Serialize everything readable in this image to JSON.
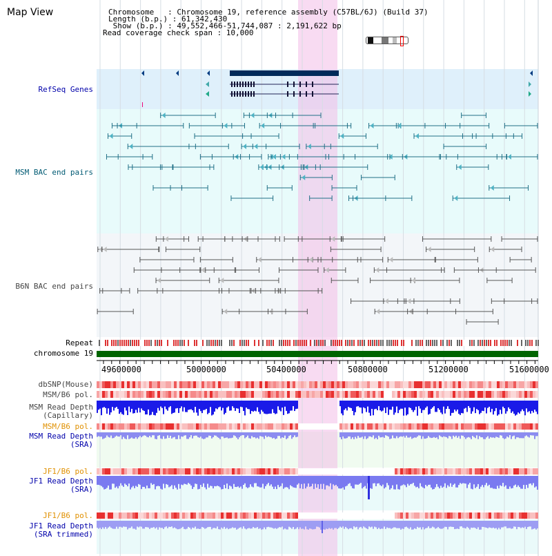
{
  "header": {
    "title": "Map View",
    "chromosome_line": "Chromosome   : Chromosome 19, reference assembly (C57BL/6J) (Build 37)",
    "length_line": "Length (b.p.) : 61,342,430",
    "show_line": " Show (b.p.) : 49,552,466-51,744,087 : 2,191,622 bp",
    "coverage_line": "Read coverage check span : 10,000"
  },
  "tracks": {
    "refseq": "RefSeq Genes",
    "msm_bac": "MSM BAC end pairs",
    "b6n_bac": "B6N BAC end pairs",
    "repeat": "Repeat",
    "chromosome": "chromosome 19",
    "dbsnp": "dbSNP(Mouse)",
    "msm_b6_pol_1": "MSM/B6 pol.",
    "msm_read_depth_cap": "MSM Read Depth\n(Capillary)",
    "msm_b6_pol_2": "MSM/B6 pol.",
    "msm_read_depth_sra": "MSM Read Depth\n(SRA)",
    "jf1_b6_pol_1": "JF1/B6 pol.",
    "jf1_read_depth_sra": "JF1 Read Depth\n(SRA)",
    "jf1_b6_pol_2": "JF1/B6 pol.",
    "jf1_read_depth_trim": "JF1 Read Depth\n(SRA trimmed)"
  },
  "axis": {
    "ticks": [
      "49600000",
      "50000000",
      "50400000",
      "50800000",
      "51200000",
      "51600000"
    ]
  },
  "colors": {
    "refseq_bg": "#dff0fb",
    "bac_bg": "#e8fbfb",
    "b6n_bg": "#f3f6f9",
    "highlight": "#f8d8f2",
    "chromosome_bar": "#006400",
    "gene_main": "#002a5a"
  }
}
